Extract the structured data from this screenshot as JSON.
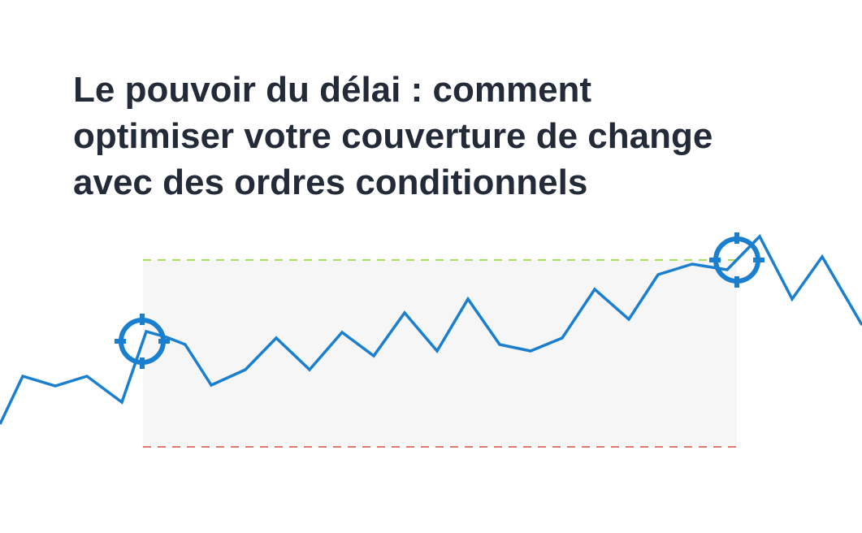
{
  "header": {
    "title_lines": [
      "Le pouvoir du délai : comment",
      "optimiser votre couverture de change",
      "avec des ordres conditionnels"
    ]
  }
}
